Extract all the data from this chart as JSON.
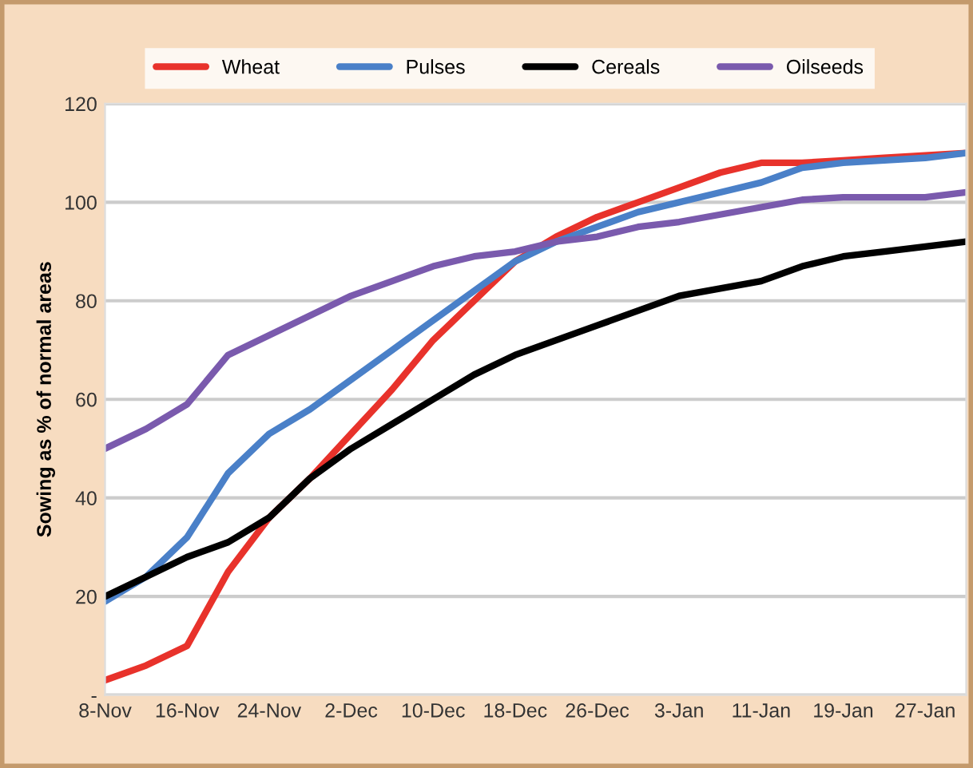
{
  "chart_data": {
    "type": "line",
    "ylabel": "Sowing as % of normal areas",
    "categories": [
      "8-Nov",
      null,
      "16-Nov",
      null,
      "24-Nov",
      null,
      "2-Dec",
      null,
      "10-Dec",
      null,
      "18-Dec",
      null,
      "26-Dec",
      null,
      "3-Jan",
      null,
      "11-Jan",
      null,
      "19-Jan",
      null,
      "27-Jan",
      null
    ],
    "series": [
      {
        "name": "Wheat",
        "color": "#e8322b",
        "values": [
          3,
          6,
          10,
          25,
          36,
          44,
          53,
          62,
          72,
          80,
          88,
          93,
          97,
          100,
          103,
          106,
          108,
          108,
          108.5,
          109,
          109.5,
          110
        ]
      },
      {
        "name": "Pulses",
        "color": "#4a80c8",
        "values": [
          19,
          24,
          32,
          45,
          53,
          58,
          64,
          70,
          76,
          82,
          88,
          92,
          95,
          98,
          100,
          102,
          104,
          107,
          108,
          108.5,
          109,
          110
        ]
      },
      {
        "name": "Cereals",
        "color": "#000000",
        "values": [
          20,
          24,
          28,
          31,
          36,
          44,
          50,
          55,
          60,
          65,
          69,
          72,
          75,
          78,
          81,
          82.5,
          84,
          87,
          89,
          90,
          91,
          92
        ]
      },
      {
        "name": "Oilseeds",
        "color": "#7a5aad",
        "values": [
          50,
          54,
          59,
          69,
          73,
          77,
          81,
          84,
          87,
          89,
          90,
          92,
          93,
          95,
          96,
          97.5,
          99,
          100.5,
          101,
          101,
          101,
          102
        ]
      }
    ],
    "ylim": [
      0,
      120
    ],
    "yticks": [
      {
        "value": 0,
        "label": "-"
      },
      20,
      40,
      60,
      80,
      100,
      120
    ],
    "grid": "y",
    "legend": "top",
    "marker": "none",
    "line_style": "solid"
  }
}
